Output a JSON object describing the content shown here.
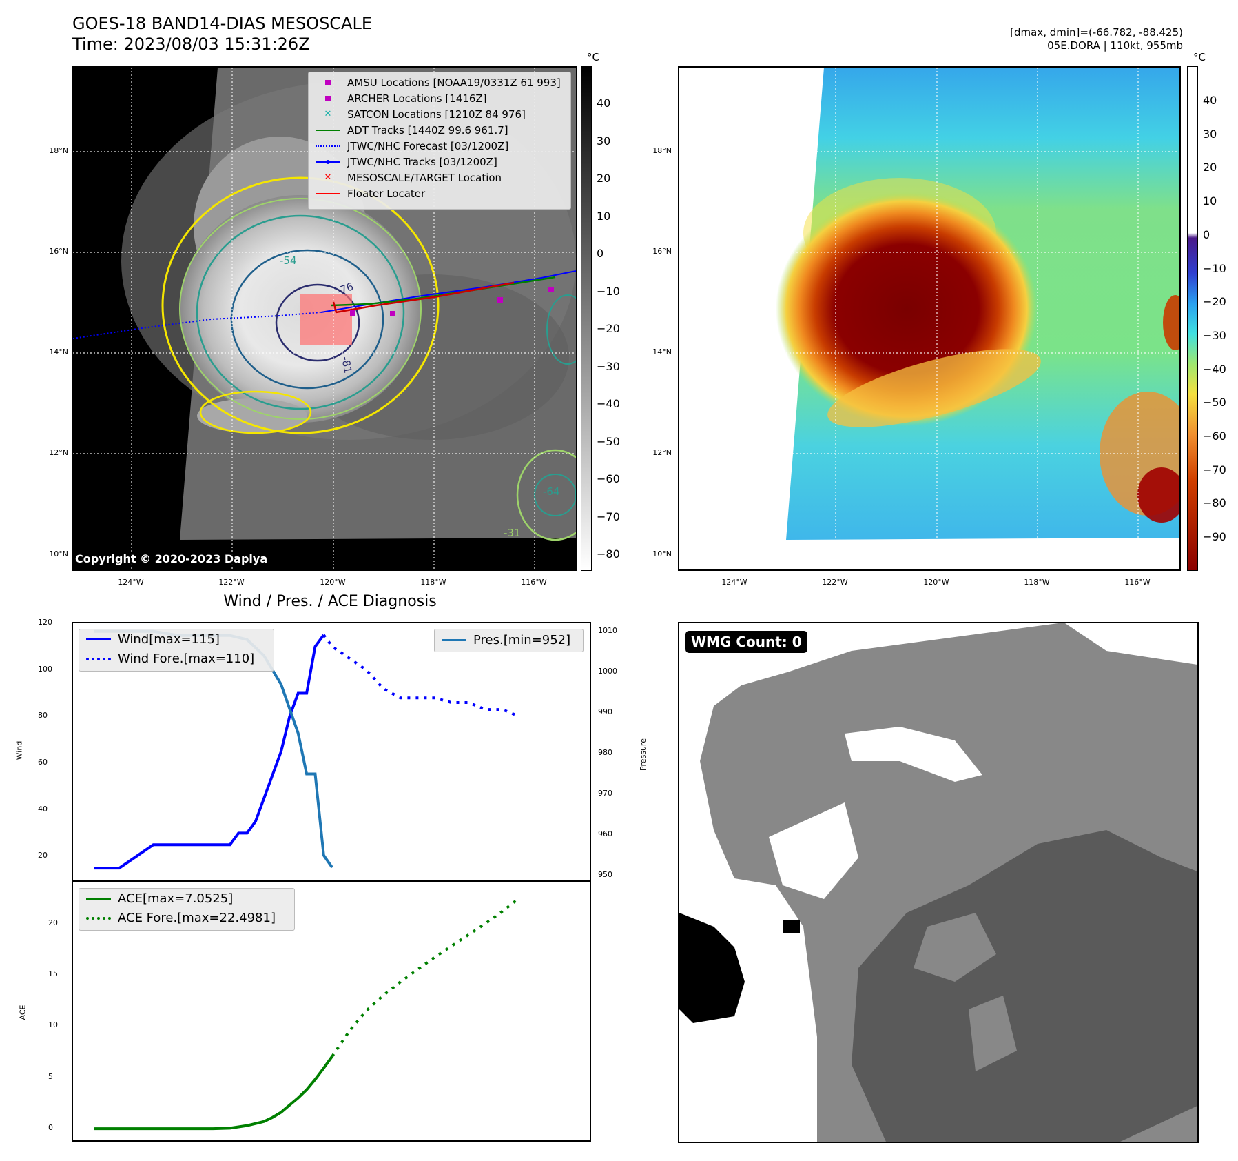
{
  "header": {
    "title_line1": "GOES-18 BAND14-DIAS MESOSCALE",
    "title_line2": "Time: 2023/08/03 15:31:26Z",
    "info_line1": "[dmax, dmin]=(-66.782, -88.425)",
    "info_line2": "05E.DORA | 110kt, 955mb"
  },
  "map": {
    "lat_ticks": [
      "18°N",
      "16°N",
      "14°N",
      "12°N",
      "10°N"
    ],
    "lon_ticks": [
      "124°W",
      "122°W",
      "120°W",
      "118°W",
      "116°W"
    ],
    "copyright": "Copyright © 2020-2023 Dapiya",
    "contour_labels": [
      "-54",
      "-76",
      "-81",
      "-64",
      "-31"
    ],
    "legend": [
      {
        "label": "AMSU Locations [NOAA19/0331Z 61 993]",
        "color": "#c000c0",
        "icon": "square-marker-icon"
      },
      {
        "label": "ARCHER Locations [1416Z]",
        "color": "#c000c0",
        "icon": "square-marker-icon"
      },
      {
        "label": "SATCON Locations [1210Z 84 976]",
        "color": "#20b2aa",
        "icon": "x-marker-icon"
      },
      {
        "label": "ADT Tracks [1440Z 99.6 961.7]",
        "color": "#008000",
        "icon": "solid-line-icon"
      },
      {
        "label": "JTWC/NHC Forecast [03/1200Z]",
        "color": "#0000ff",
        "icon": "dotted-line-icon"
      },
      {
        "label": "JTWC/NHC Tracks [03/1200Z]",
        "color": "#0000ff",
        "icon": "line-dot-icon"
      },
      {
        "label": "MESOSCALE/TARGET Location",
        "color": "#ff0000",
        "icon": "x-marker-icon"
      },
      {
        "label": "Floater Locater",
        "color": "#ff0000",
        "icon": "solid-line-icon"
      }
    ]
  },
  "colorbars": {
    "unit": "°C",
    "gray_ticks": [
      "40",
      "30",
      "20",
      "10",
      "0",
      "−10",
      "−20",
      "−30",
      "−40",
      "−50",
      "−60",
      "−70",
      "−80"
    ],
    "color_ticks": [
      "40",
      "30",
      "20",
      "10",
      "0",
      "−10",
      "−20",
      "−30",
      "−40",
      "−50",
      "−60",
      "−70",
      "−80",
      "−90"
    ]
  },
  "wmg": {
    "badge": "WMG Count: 0"
  },
  "chart_data": [
    {
      "type": "line",
      "title": "Wind / Pres. / ACE Diagnosis",
      "ylabel": "Wind",
      "ylabel_right": "Pressure",
      "x": [
        0,
        1,
        2,
        3,
        4,
        5,
        6,
        7,
        8,
        9,
        10,
        11,
        12,
        13,
        14,
        15,
        16,
        17,
        18,
        19,
        20,
        21,
        22,
        23,
        24,
        25,
        26,
        27,
        28,
        29,
        30,
        31,
        32,
        33,
        34,
        35,
        36,
        37,
        38,
        39,
        40
      ],
      "ylim": [
        10,
        120
      ],
      "yticks": [
        "120",
        "100",
        "80",
        "60",
        "40",
        "20"
      ],
      "ylim_right": [
        949,
        1012
      ],
      "yticks_right": [
        "1010",
        "1000",
        "990",
        "980",
        "970",
        "960",
        "950"
      ],
      "series": [
        {
          "name": "Wind[max=115]",
          "color": "#0000ff",
          "style": "solid",
          "x": [
            0,
            3,
            5,
            7,
            10,
            12,
            14,
            16,
            17,
            18,
            19,
            20,
            21,
            22,
            23,
            24,
            25,
            26,
            27
          ],
          "values": [
            15,
            15,
            20,
            25,
            25,
            25,
            25,
            25,
            30,
            30,
            35,
            45,
            55,
            65,
            80,
            90,
            90,
            110,
            115
          ]
        },
        {
          "name": "Wind Fore.[max=110]",
          "color": "#0000ff",
          "style": "dotted",
          "x": [
            27,
            28,
            30,
            32,
            34,
            36,
            38,
            40,
            42,
            44,
            46,
            48,
            50
          ],
          "values": [
            115,
            110,
            105,
            100,
            92,
            88,
            88,
            88,
            86,
            86,
            83,
            83,
            80
          ]
        },
        {
          "name": "Pres.[min=952]",
          "color": "#1f77b4",
          "style": "solid",
          "axis": "right",
          "x": [
            0,
            3,
            5,
            7,
            10,
            12,
            14,
            16,
            18,
            20,
            22,
            24,
            25,
            26,
            27,
            28
          ],
          "values": [
            1010,
            1010,
            1010,
            1010,
            1009,
            1009,
            1009,
            1009,
            1008,
            1004,
            997,
            985,
            975,
            975,
            955,
            952
          ]
        }
      ]
    },
    {
      "type": "line",
      "ylabel": "ACE",
      "ylim": [
        -1,
        24
      ],
      "yticks": [
        "20",
        "15",
        "10",
        "5",
        "0"
      ],
      "series": [
        {
          "name": "ACE[max=7.0525]",
          "color": "#008000",
          "style": "solid",
          "x": [
            0,
            5,
            10,
            14,
            16,
            18,
            20,
            21,
            22,
            23,
            24,
            25,
            26,
            27,
            28
          ],
          "values": [
            0,
            0,
            0,
            0,
            0.05,
            0.3,
            0.7,
            1.1,
            1.6,
            2.3,
            3.0,
            3.8,
            4.8,
            5.9,
            7.05
          ]
        },
        {
          "name": "ACE Fore.[max=22.4981]",
          "color": "#008000",
          "style": "dotted",
          "x": [
            28,
            30,
            32,
            34,
            36,
            38,
            40,
            42,
            44,
            46,
            48,
            50
          ],
          "values": [
            7.05,
            9.5,
            11.5,
            13.0,
            14.3,
            15.5,
            16.7,
            17.8,
            18.9,
            20.0,
            21.2,
            22.5
          ]
        }
      ]
    }
  ]
}
